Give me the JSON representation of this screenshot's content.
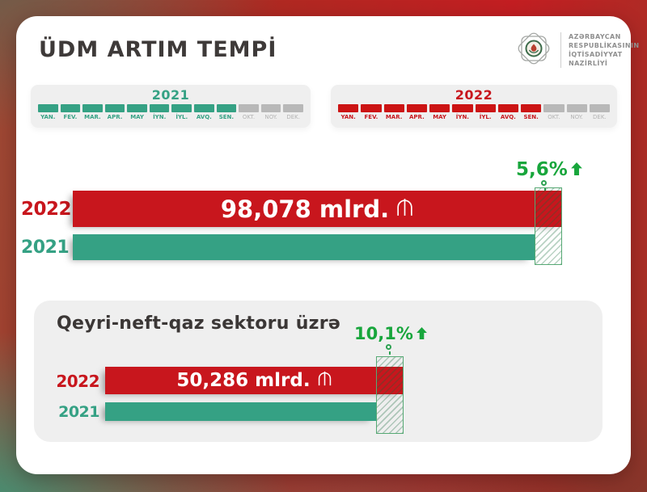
{
  "header": {
    "title": "ÜDM ARTIM TEMPİ",
    "ministry": {
      "lines": [
        "AZƏRBAYCAN",
        "RESPUBLİKASININ",
        "İQTİSADİYYAT",
        "NAZİRLİYİ"
      ]
    }
  },
  "timelines": [
    {
      "year": "2021",
      "accent": "#35a184",
      "months": [
        {
          "label": "YAN.",
          "active": true
        },
        {
          "label": "FEV.",
          "active": true
        },
        {
          "label": "MAR.",
          "active": true
        },
        {
          "label": "APR.",
          "active": true
        },
        {
          "label": "MAY",
          "active": true
        },
        {
          "label": "İYN.",
          "active": true
        },
        {
          "label": "İYL.",
          "active": true
        },
        {
          "label": "AVQ.",
          "active": true
        },
        {
          "label": "SEN.",
          "active": true
        },
        {
          "label": "OKT.",
          "active": false
        },
        {
          "label": "NOY.",
          "active": false
        },
        {
          "label": "DEK.",
          "active": false
        }
      ]
    },
    {
      "year": "2022",
      "accent": "#c8161d",
      "months": [
        {
          "label": "YAN.",
          "active": true
        },
        {
          "label": "FEV.",
          "active": true
        },
        {
          "label": "MAR.",
          "active": true
        },
        {
          "label": "APR.",
          "active": true
        },
        {
          "label": "MAY",
          "active": true
        },
        {
          "label": "İYN.",
          "active": true
        },
        {
          "label": "İYL.",
          "active": true
        },
        {
          "label": "AVQ.",
          "active": true
        },
        {
          "label": "SEN.",
          "active": true
        },
        {
          "label": "OKT.",
          "active": false
        },
        {
          "label": "NOY.",
          "active": false
        },
        {
          "label": "DEK.",
          "active": false
        }
      ]
    }
  ],
  "gdp_chart": {
    "growth": "5,6%",
    "bar_2022": {
      "year": "2022",
      "value": "98,078 mlrd."
    },
    "bar_2021": {
      "year": "2021"
    }
  },
  "non_oil_chart": {
    "heading": "Qeyri-neft-qaz sektoru üzrə",
    "growth": "10,1%",
    "bar_2022": {
      "year": "2022",
      "value": "50,286 mlrd."
    },
    "bar_2021": {
      "year": "2021"
    }
  },
  "colors": {
    "red": "#c8161d",
    "teal": "#35a184",
    "green_accent": "#18a63c",
    "inactive_gray": "#b8b8b8",
    "panel_gray": "#efefef"
  },
  "chart_data": [
    {
      "type": "bar",
      "orientation": "horizontal",
      "title": "ÜDM ARTIM TEMPİ",
      "categories": [
        "2022",
        "2021"
      ],
      "values": [
        98.078,
        92.9
      ],
      "value_note": "2021 value estimated from bar length; only 2022 labeled",
      "data_labels": [
        "98,078 mlrd. ₼",
        ""
      ],
      "unit": "mlrd. manat (₼)",
      "growth_percent": 5.6,
      "covered_months": [
        "YAN.",
        "FEV.",
        "MAR.",
        "APR.",
        "MAY",
        "İYN.",
        "İYL.",
        "AVQ.",
        "SEN."
      ],
      "colors": [
        "#c8161d",
        "#35a184"
      ],
      "legend_position": "left",
      "grid": false
    },
    {
      "type": "bar",
      "orientation": "horizontal",
      "title": "Qeyri-neft-qaz sektoru üzrə",
      "categories": [
        "2022",
        "2021"
      ],
      "values": [
        50.286,
        45.7
      ],
      "value_note": "2021 value estimated from bar length; only 2022 labeled",
      "data_labels": [
        "50,286 mlrd. ₼",
        ""
      ],
      "unit": "mlrd. manat (₼)",
      "growth_percent": 10.1,
      "covered_months": [
        "YAN.",
        "FEV.",
        "MAR.",
        "APR.",
        "MAY",
        "İYN.",
        "İYL.",
        "AVQ.",
        "SEN."
      ],
      "colors": [
        "#c8161d",
        "#35a184"
      ],
      "legend_position": "left",
      "grid": false
    }
  ]
}
